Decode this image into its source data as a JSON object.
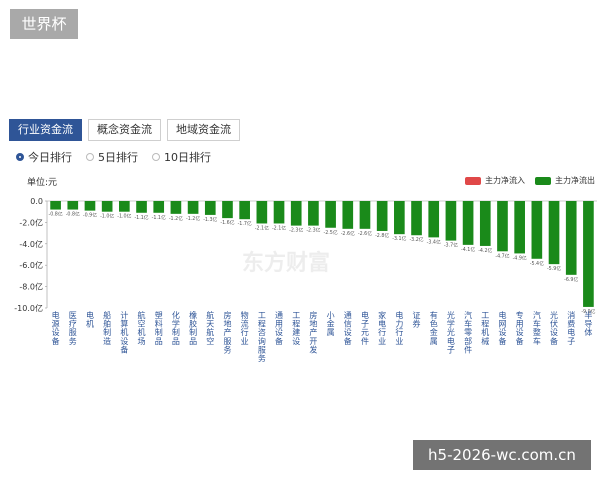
{
  "window_title": "世界杯",
  "tabs": [
    {
      "label": "行业资金流",
      "active": true
    },
    {
      "label": "概念资金流",
      "active": false
    },
    {
      "label": "地域资金流",
      "active": false
    }
  ],
  "radios": [
    {
      "label": "今日排行",
      "selected": true
    },
    {
      "label": "5日排行",
      "selected": false
    },
    {
      "label": "10日排行",
      "selected": false
    }
  ],
  "unit_label": "单位:元",
  "legend": {
    "inflow_label": "主力净流入",
    "outflow_label": "主力净流出",
    "inflow_color": "#e04848",
    "outflow_color": "#1a8a1a"
  },
  "watermark": "东方财富",
  "site_url": "h5-2026-wc.com.cn",
  "chart_data": {
    "type": "bar",
    "ylabel": "单位:元",
    "ylim": [
      -10.0,
      0.0
    ],
    "ytick_labels": [
      "0.0",
      "-2.0亿",
      "-4.0亿",
      "-6.0亿",
      "-8.0亿",
      "-10.0亿"
    ],
    "ytick_values": [
      0,
      -2,
      -4,
      -6,
      -8,
      -10
    ],
    "categories": [
      "电源设备",
      "医疗服务",
      "电机",
      "船舶制造",
      "计算机设备",
      "航空机场",
      "塑料制品",
      "化学制品",
      "橡胶制品",
      "航天航空",
      "房地产服务",
      "物流行业",
      "工程咨询服务",
      "通用设备",
      "工程建设",
      "房地产开发",
      "小金属",
      "通信设备",
      "电子元件",
      "家电行业",
      "电力行业",
      "证券",
      "有色金属",
      "光学光电子",
      "汽车零部件",
      "工程机械",
      "电网设备",
      "专用设备",
      "汽车整车",
      "光伏设备",
      "消费电子",
      "半导体"
    ],
    "values": [
      -0.8,
      -0.8,
      -0.9,
      -1.0,
      -1.0,
      -1.1,
      -1.1,
      -1.2,
      -1.2,
      -1.3,
      -1.6,
      -1.7,
      -2.1,
      -2.1,
      -2.3,
      -2.3,
      -2.5,
      -2.6,
      -2.6,
      -2.8,
      -3.1,
      -3.2,
      -3.4,
      -3.7,
      -4.1,
      -4.2,
      -4.7,
      -4.9,
      -5.4,
      -5.9,
      -6.9,
      -9.9
    ],
    "value_labels": [
      "-0.8亿",
      "-0.8亿",
      "-0.9亿",
      "-1.0亿",
      "-1.0亿",
      "-1.1亿",
      "-1.1亿",
      "-1.2亿",
      "-1.2亿",
      "-1.3亿",
      "-1.6亿",
      "-1.7亿",
      "-2.1亿",
      "-2.1亿",
      "-2.3亿",
      "-2.3亿",
      "-2.5亿",
      "-2.6亿",
      "-2.6亿",
      "-2.8亿",
      "-3.1亿",
      "-3.2亿",
      "-3.4亿",
      "-3.7亿",
      "-4.1亿",
      "-4.2亿",
      "-4.7亿",
      "-4.9亿",
      "-5.4亿",
      "-5.9亿",
      "-6.9亿",
      "-9.9亿"
    ],
    "series": [
      {
        "name": "主力净流出",
        "color": "#1a8a1a"
      }
    ],
    "grid": false,
    "legend_position": "top-right"
  }
}
